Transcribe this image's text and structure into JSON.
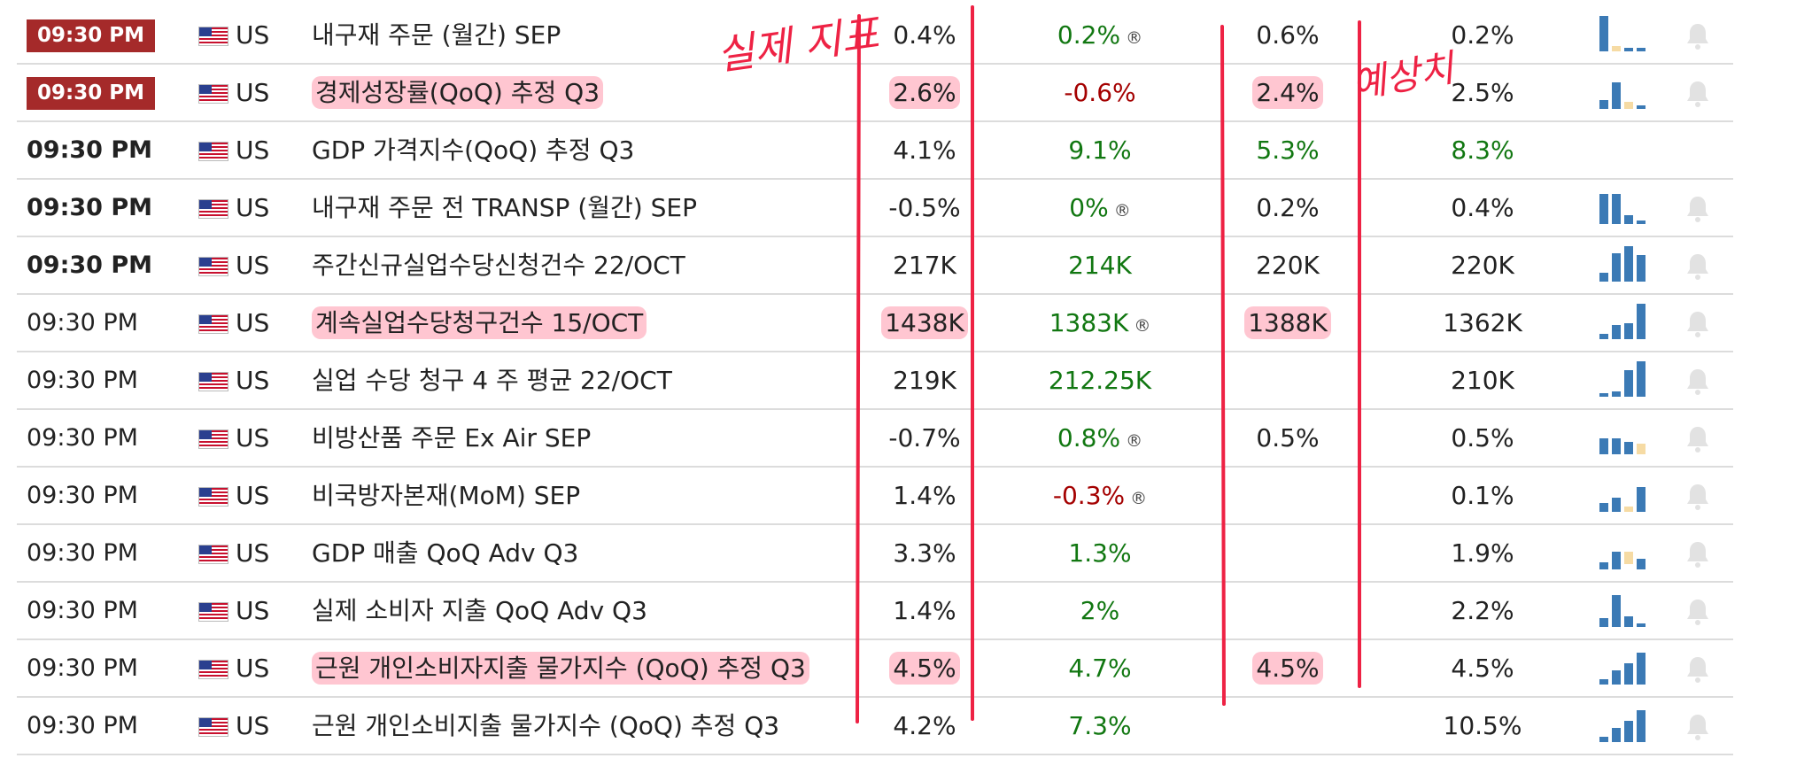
{
  "colors": {
    "actual_green": "#117711",
    "actual_red": "#a40000",
    "badge": "#a52a2a",
    "bar": "#3b7ab5",
    "bar_light": "#f6dba4",
    "annotation": "#ee2244"
  },
  "annotations": {
    "actual_label": "실제 지표",
    "forecast_label": "예상치"
  },
  "rows": [
    {
      "time": "09:30 PM",
      "style": "badge",
      "country": "US",
      "event": "내구재 주문 (월간) SEP",
      "actual": "0.4%",
      "antecedent": "0.2%",
      "ant_class": "pos",
      "revised": "®",
      "forecast": "0.6%",
      "previous": "0.2%",
      "hl_event": false,
      "hl_actual": false,
      "hl_forecast": false,
      "bars": [
        44,
        6,
        4,
        4
      ],
      "light": [
        1
      ]
    },
    {
      "time": "09:30 PM",
      "style": "badge",
      "country": "US",
      "event": "경제성장률(QoQ) 추정 Q3",
      "actual": "2.6%",
      "antecedent": "-0.6%",
      "ant_class": "neg",
      "revised": "",
      "forecast": "2.4%",
      "previous": "2.5%",
      "hl_event": true,
      "hl_actual": true,
      "hl_forecast": true,
      "bars": [
        10,
        30,
        8,
        4
      ],
      "light": [
        2
      ]
    },
    {
      "time": "09:30 PM",
      "style": "bold",
      "country": "US",
      "event": "GDP 가격지수(QoQ) 추정 Q3",
      "actual": "4.1%",
      "antecedent": "9.1%",
      "ant_class": "pos",
      "revised": "",
      "forecast": "5.3%",
      "forecast_class": "pos",
      "previous": "8.3%",
      "previous_class": "pos",
      "hl_event": false,
      "hl_actual": false,
      "hl_forecast": false,
      "bars": [],
      "light": []
    },
    {
      "time": "09:30 PM",
      "style": "bold",
      "country": "US",
      "event": "내구재 주문 전 TRANSP (월간) SEP",
      "actual": "-0.5%",
      "antecedent": "0%",
      "ant_class": "pos",
      "revised": "®",
      "forecast": "0.2%",
      "previous": "0.4%",
      "hl_event": false,
      "hl_actual": false,
      "hl_forecast": false,
      "bars": [
        34,
        34,
        10,
        4
      ],
      "light": []
    },
    {
      "time": "09:30 PM",
      "style": "bold",
      "country": "US",
      "event": "주간신규실업수당신청건수 22/OCT",
      "actual": "217K",
      "antecedent": "214K",
      "ant_class": "pos",
      "revised": "",
      "forecast": "220K",
      "previous": "220K",
      "hl_event": false,
      "hl_actual": false,
      "hl_forecast": false,
      "bars": [
        10,
        32,
        40,
        30
      ],
      "light": []
    },
    {
      "time": "09:30 PM",
      "style": "plain",
      "country": "US",
      "event": "계속실업수당청구건수 15/OCT",
      "actual": "1438K",
      "antecedent": "1383K",
      "ant_class": "pos",
      "revised": "®",
      "forecast": "1388K",
      "previous": "1362K",
      "hl_event": true,
      "hl_actual": true,
      "hl_forecast": true,
      "bars": [
        6,
        16,
        18,
        40
      ],
      "light": []
    },
    {
      "time": "09:30 PM",
      "style": "plain",
      "country": "US",
      "event": "실업 수당 청구 4 주 평균 22/OCT",
      "actual": "219K",
      "antecedent": "212.25K",
      "ant_class": "pos",
      "revised": "",
      "forecast": "",
      "previous": "210K",
      "hl_event": false,
      "hl_actual": false,
      "hl_forecast": false,
      "bars": [
        4,
        6,
        30,
        40
      ],
      "light": []
    },
    {
      "time": "09:30 PM",
      "style": "plain",
      "country": "US",
      "event": "비방산품 주문 Ex Air SEP",
      "actual": "-0.7%",
      "antecedent": "0.8%",
      "ant_class": "pos",
      "revised": "®",
      "forecast": "0.5%",
      "previous": "0.5%",
      "hl_event": false,
      "hl_actual": false,
      "hl_forecast": false,
      "bars": [
        18,
        18,
        14,
        12
      ],
      "light": [
        3
      ]
    },
    {
      "time": "09:30 PM",
      "style": "plain",
      "country": "US",
      "event": "비국방자본재(MoM) SEP",
      "actual": "1.4%",
      "antecedent": "-0.3%",
      "ant_class": "neg",
      "revised": "®",
      "forecast": "",
      "previous": "0.1%",
      "hl_event": false,
      "hl_actual": false,
      "hl_forecast": false,
      "bars": [
        10,
        16,
        6,
        28
      ],
      "light": [
        2
      ]
    },
    {
      "time": "09:30 PM",
      "style": "plain",
      "country": "US",
      "event": "GDP 매출 QoQ Adv Q3",
      "actual": "3.3%",
      "antecedent": "1.3%",
      "ant_class": "pos",
      "revised": "",
      "forecast": "",
      "previous": "1.9%",
      "hl_event": false,
      "hl_actual": false,
      "hl_forecast": false,
      "bars": [
        8,
        20,
        -14,
        12
      ],
      "light": [
        2
      ]
    },
    {
      "time": "09:30 PM",
      "style": "plain",
      "country": "US",
      "event": "실제 소비자 지출 QoQ Adv Q3",
      "actual": "1.4%",
      "antecedent": "2%",
      "ant_class": "pos",
      "revised": "",
      "forecast": "",
      "previous": "2.2%",
      "hl_event": false,
      "hl_actual": false,
      "hl_forecast": false,
      "bars": [
        10,
        36,
        12,
        4
      ],
      "light": []
    },
    {
      "time": "09:30 PM",
      "style": "plain",
      "country": "US",
      "event": "근원 개인소비자지출 물가지수 (QoQ) 추정 Q3",
      "actual": "4.5%",
      "antecedent": "4.7%",
      "ant_class": "pos",
      "revised": "",
      "forecast": "4.5%",
      "previous": "4.5%",
      "hl_event": true,
      "hl_actual": true,
      "hl_forecast": true,
      "bars": [
        6,
        16,
        24,
        36
      ],
      "light": []
    },
    {
      "time": "09:30 PM",
      "style": "plain",
      "country": "US",
      "event": "근원 개인소비지출 물가지수 (QoQ) 추정 Q3",
      "actual": "4.2%",
      "antecedent": "7.3%",
      "ant_class": "pos",
      "revised": "",
      "forecast": "",
      "previous": "10.5%",
      "hl_event": false,
      "hl_actual": false,
      "hl_forecast": false,
      "bars": [
        6,
        16,
        24,
        36
      ],
      "light": []
    }
  ]
}
